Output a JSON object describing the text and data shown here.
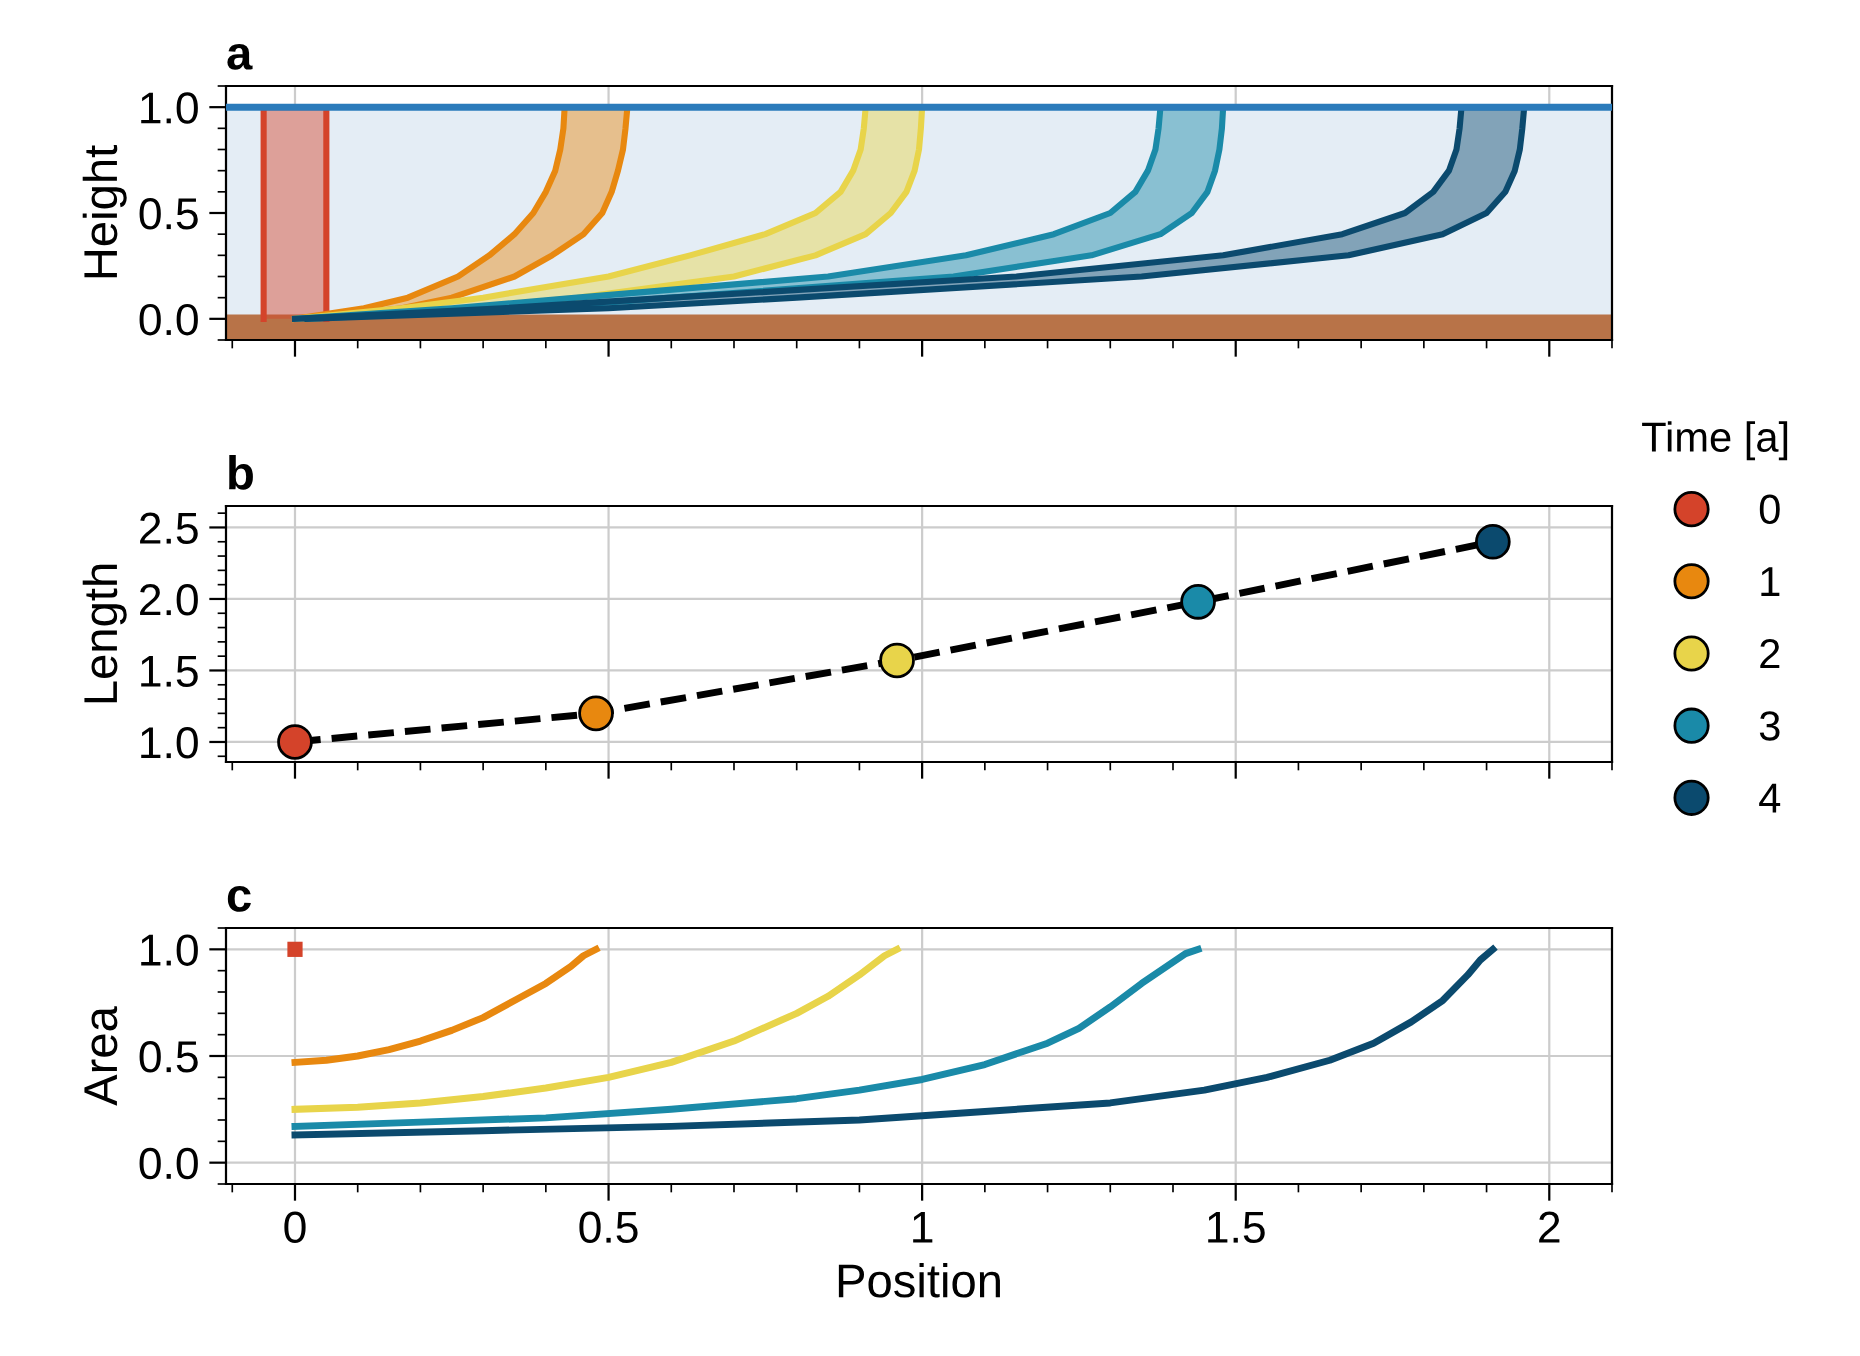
{
  "chart_data": [
    {
      "type": "area",
      "title": "a",
      "ylabel": "Height",
      "xlim": [
        -0.11,
        2.1
      ],
      "xticks": [
        {
          "value": 0,
          "label": null
        },
        {
          "value": 0.5,
          "label": null
        },
        {
          "value": 1,
          "label": null
        },
        {
          "value": 1.5,
          "label": null
        },
        {
          "value": 2,
          "label": null
        }
      ],
      "ylim": [
        -0.1,
        1.1
      ],
      "yticks": [
        {
          "value": 0,
          "label": "0.0"
        },
        0.5,
        {
          "value": 1,
          "label": "1.0"
        }
      ],
      "grid": true,
      "tick_labels": "y",
      "bands": [
        {
          "axis": "y",
          "from": 0,
          "to": 1,
          "color": "#e4edf5"
        },
        {
          "axis": "y",
          "from": -0.1,
          "to": 0.02,
          "color": "#b87348"
        }
      ],
      "ref_lines": [
        {
          "axis": "y",
          "value": 1,
          "color": "#2b7bbb"
        }
      ],
      "series": [
        {
          "color": "#d4432a",
          "x": [
            -0.05,
            -0.05,
            0.05,
            0.05
          ],
          "values": [
            0,
            1,
            1,
            0
          ]
        },
        {
          "color": "#e8880f",
          "x": [
            0,
            0.11,
            0.18,
            0.26,
            0.31,
            0.35,
            0.38,
            0.4,
            0.415,
            0.423,
            0.428,
            0.43,
            0.53,
            0.527,
            0.523,
            0.515,
            0.505,
            0.49,
            0.46,
            0.41,
            0.35,
            0.25,
            0.17,
            0.02
          ],
          "values": [
            0,
            0.05,
            0.1,
            0.2,
            0.3,
            0.4,
            0.5,
            0.6,
            0.7,
            0.8,
            0.9,
            1,
            1,
            0.9,
            0.8,
            0.7,
            0.6,
            0.5,
            0.4,
            0.3,
            0.2,
            0.1,
            0.05,
            0
          ]
        },
        {
          "color": "#e8d44a",
          "x": [
            0,
            0.17,
            0.3,
            0.5,
            0.63,
            0.75,
            0.83,
            0.87,
            0.89,
            0.902,
            0.907,
            0.91,
            1.0,
            0.998,
            0.995,
            0.988,
            0.975,
            0.95,
            0.91,
            0.83,
            0.7,
            0.45,
            0.28,
            0.02
          ],
          "values": [
            0,
            0.05,
            0.1,
            0.2,
            0.3,
            0.4,
            0.5,
            0.6,
            0.7,
            0.8,
            0.9,
            1,
            1,
            0.9,
            0.8,
            0.7,
            0.6,
            0.5,
            0.4,
            0.3,
            0.2,
            0.1,
            0.05,
            0
          ]
        },
        {
          "color": "#1a8aa8",
          "x": [
            0,
            0.25,
            0.45,
            0.85,
            1.07,
            1.21,
            1.3,
            1.34,
            1.36,
            1.372,
            1.377,
            1.38,
            1.48,
            1.478,
            1.474,
            1.467,
            1.455,
            1.43,
            1.38,
            1.27,
            1.05,
            0.6,
            0.38,
            0.02
          ],
          "values": [
            0,
            0.05,
            0.1,
            0.2,
            0.3,
            0.4,
            0.5,
            0.6,
            0.7,
            0.8,
            0.9,
            1,
            1,
            0.9,
            0.8,
            0.7,
            0.6,
            0.5,
            0.4,
            0.3,
            0.2,
            0.1,
            0.05,
            0
          ]
        },
        {
          "color": "#0b4a6e",
          "x": [
            0,
            0.33,
            0.6,
            1.15,
            1.48,
            1.67,
            1.77,
            1.815,
            1.84,
            1.852,
            1.857,
            1.86,
            1.96,
            1.957,
            1.953,
            1.945,
            1.93,
            1.9,
            1.83,
            1.68,
            1.35,
            0.8,
            0.5,
            0.02
          ],
          "values": [
            0,
            0.05,
            0.1,
            0.2,
            0.3,
            0.4,
            0.5,
            0.6,
            0.7,
            0.8,
            0.9,
            1,
            1,
            0.9,
            0.8,
            0.7,
            0.6,
            0.5,
            0.4,
            0.3,
            0.2,
            0.1,
            0.05,
            0
          ]
        }
      ]
    },
    {
      "type": "scatter",
      "title": "b",
      "ylabel": "Length",
      "legend_title": "Time [a]",
      "legend": "right",
      "xlim": [
        -0.11,
        2.1
      ],
      "xticks": [
        {
          "value": 0,
          "label": null
        },
        {
          "value": 0.5,
          "label": null
        },
        {
          "value": 1,
          "label": null
        },
        {
          "value": 1.5,
          "label": null
        },
        {
          "value": 2,
          "label": null
        }
      ],
      "ylim": [
        0.86,
        2.65
      ],
      "yticks": [
        {
          "value": 1,
          "label": "1.0"
        },
        1.5,
        {
          "value": 2,
          "label": "2.0"
        },
        2.5
      ],
      "grid": true,
      "tick_labels": "y",
      "marker": "circle",
      "series": [
        {
          "type": "line",
          "color": "#000000",
          "line_style": "dashed",
          "marker": "none",
          "x": [
            0,
            0.48,
            0.96,
            1.44,
            1.91
          ],
          "values": [
            1.0,
            1.2,
            1.57,
            1.98,
            2.4
          ]
        },
        {
          "name": "0",
          "color": "#d4432a",
          "x": [
            0
          ],
          "values": [
            1.0
          ]
        },
        {
          "name": "1",
          "color": "#e8880f",
          "x": [
            0.48
          ],
          "values": [
            1.2
          ]
        },
        {
          "name": "2",
          "color": "#e8d44a",
          "x": [
            0.96
          ],
          "values": [
            1.57
          ]
        },
        {
          "name": "3",
          "color": "#1a8aa8",
          "x": [
            1.44
          ],
          "values": [
            1.98
          ]
        },
        {
          "name": "4",
          "color": "#0b4a6e",
          "x": [
            1.91
          ],
          "values": [
            2.4
          ]
        }
      ]
    },
    {
      "type": "line",
      "title": "c",
      "xlabel": "Position",
      "ylabel": "Area",
      "xlim": [
        -0.11,
        2.1
      ],
      "xticks": [
        {
          "value": 0,
          "label": "0"
        },
        0.5,
        {
          "value": 1,
          "label": "1"
        },
        1.5,
        {
          "value": 2,
          "label": "2"
        }
      ],
      "ylim": [
        -0.1,
        1.1
      ],
      "yticks": [
        {
          "value": 0,
          "label": "0.0"
        },
        0.5,
        {
          "value": 1,
          "label": "1.0"
        }
      ],
      "grid": true,
      "line_style": "solid",
      "series": [
        {
          "type": "scatter",
          "marker": "square",
          "color": "#d4432a",
          "x": [
            0
          ],
          "values": [
            1.0
          ]
        },
        {
          "color": "#e8880f",
          "x": [
            0,
            0.05,
            0.1,
            0.15,
            0.2,
            0.25,
            0.3,
            0.35,
            0.4,
            0.44,
            0.46,
            0.48
          ],
          "values": [
            0.47,
            0.48,
            0.5,
            0.53,
            0.57,
            0.62,
            0.68,
            0.76,
            0.84,
            0.92,
            0.97,
            1.0
          ]
        },
        {
          "color": "#e8d44a",
          "x": [
            0,
            0.1,
            0.2,
            0.3,
            0.4,
            0.5,
            0.6,
            0.7,
            0.8,
            0.85,
            0.9,
            0.94,
            0.96
          ],
          "values": [
            0.25,
            0.26,
            0.28,
            0.31,
            0.35,
            0.4,
            0.47,
            0.57,
            0.7,
            0.78,
            0.88,
            0.97,
            1.0
          ]
        },
        {
          "color": "#1a8aa8",
          "x": [
            0,
            0.2,
            0.4,
            0.6,
            0.8,
            0.9,
            1.0,
            1.1,
            1.2,
            1.25,
            1.3,
            1.35,
            1.4,
            1.42,
            1.44
          ],
          "values": [
            0.17,
            0.19,
            0.21,
            0.25,
            0.3,
            0.34,
            0.39,
            0.46,
            0.56,
            0.63,
            0.73,
            0.84,
            0.94,
            0.98,
            1.0
          ]
        },
        {
          "color": "#0b4a6e",
          "x": [
            0,
            0.3,
            0.6,
            0.9,
            1.1,
            1.3,
            1.45,
            1.55,
            1.65,
            1.72,
            1.78,
            1.83,
            1.87,
            1.89,
            1.91
          ],
          "values": [
            0.13,
            0.15,
            0.17,
            0.2,
            0.24,
            0.28,
            0.34,
            0.4,
            0.48,
            0.56,
            0.66,
            0.76,
            0.88,
            0.95,
            1.0
          ]
        }
      ]
    }
  ]
}
